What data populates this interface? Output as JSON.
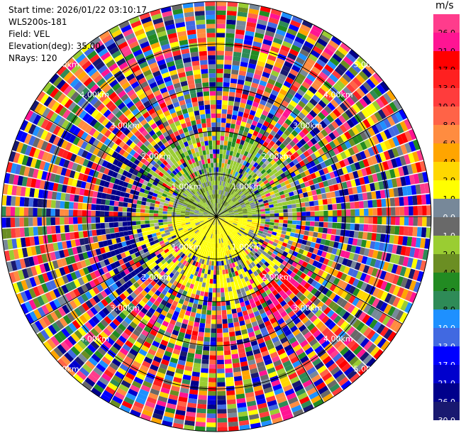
{
  "header": {
    "start_time": "Start time: 2026/01/22 03:10:17",
    "instrument": "WLS200s-181",
    "field": "Field: VEL",
    "elevation": "Elevation(deg): 35.00",
    "nrays": "NRays: 120"
  },
  "colorbar": {
    "unit": "m/s",
    "entries": [
      {
        "label": "26.0",
        "color": "#ff3c8c"
      },
      {
        "label": "21.0",
        "color": "#ff1493"
      },
      {
        "label": "17.0",
        "color": "#ff0000"
      },
      {
        "label": "13.0",
        "color": "#ff2020"
      },
      {
        "label": "10.0",
        "color": "#ff3c3c"
      },
      {
        "label": "8.0",
        "color": "#ff6347"
      },
      {
        "label": "6.0",
        "color": "#ff8c40"
      },
      {
        "label": "4.0",
        "color": "#ffa500"
      },
      {
        "label": "2.0",
        "color": "#ffd700"
      },
      {
        "label": "1.0",
        "color": "#ffff00"
      },
      {
        "label": "0.0",
        "color": "#778899"
      },
      {
        "label": "-1.0",
        "color": "#696969"
      },
      {
        "label": "-2.0",
        "color": "#9acd32"
      },
      {
        "label": "-4.0",
        "color": "#6b8e23"
      },
      {
        "label": "-6.0",
        "color": "#228b22"
      },
      {
        "label": "-8.0",
        "color": "#2e8b57"
      },
      {
        "label": "-10.0",
        "color": "#1e90ff"
      },
      {
        "label": "-13.0",
        "color": "#4169e1"
      },
      {
        "label": "-17.0",
        "color": "#0000ff"
      },
      {
        "label": "-21.0",
        "color": "#0000cd"
      },
      {
        "label": "-26.0",
        "color": "#00008b"
      },
      {
        "label": "-30.0",
        "color": "#191970"
      }
    ]
  },
  "range_labels": [
    "1.00km",
    "2.00km",
    "3.00km",
    "4.00km",
    "5.00km"
  ]
}
